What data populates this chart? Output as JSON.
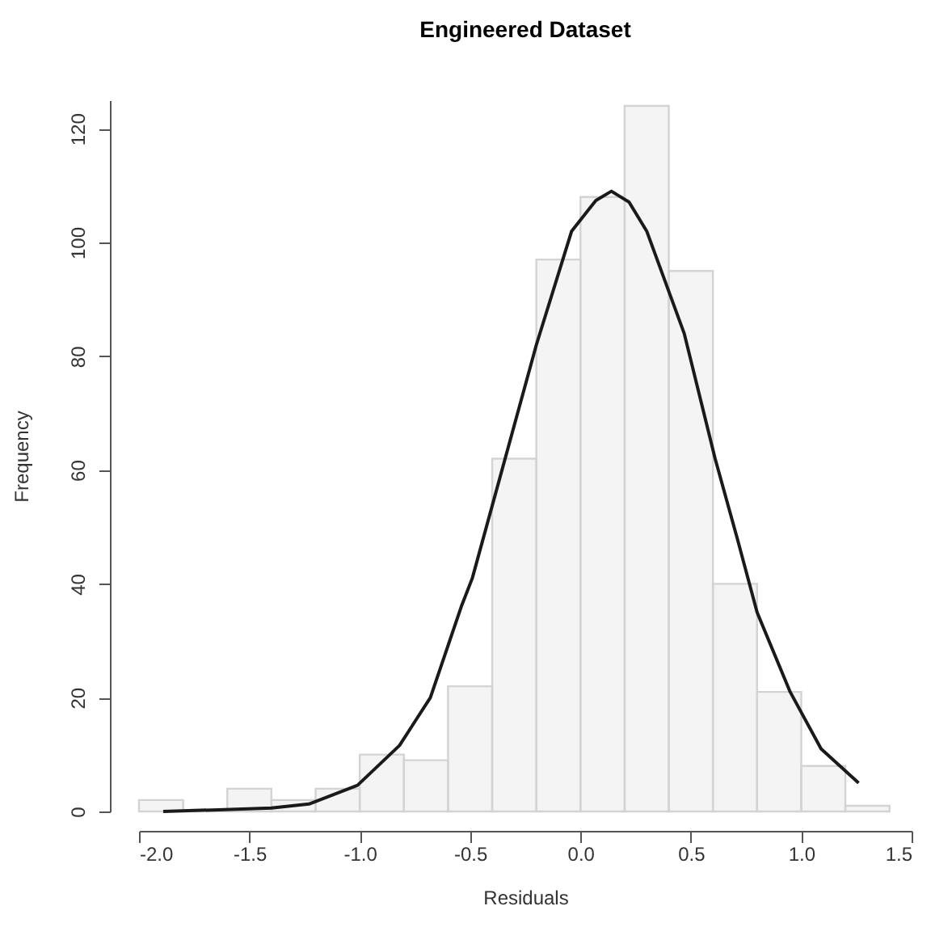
{
  "chart_data": {
    "type": "histogram",
    "title": "Engineered Dataset",
    "xlabel": "Residuals",
    "ylabel": "Frequency",
    "bins": [
      -2.0,
      -1.8,
      -1.6,
      -1.4,
      -1.2,
      -1.0,
      -0.8,
      -0.6,
      -0.4,
      -0.2,
      0.0,
      0.2,
      0.4,
      0.6,
      0.8,
      1.0,
      1.2,
      1.4
    ],
    "values": [
      2,
      0,
      4,
      2,
      4,
      10,
      9,
      22,
      62,
      97,
      108,
      124,
      95,
      40,
      21,
      8,
      1
    ],
    "color": "#d3d3d3",
    "series": [
      {
        "type": "line",
        "color": "#1a1a1a",
        "x": [
          -1.89,
          -1.64,
          -1.4,
          -1.23,
          -1.01,
          -0.82,
          -0.68,
          -0.54,
          -0.49,
          -0.2,
          -0.04,
          0.07,
          0.14,
          0.22,
          0.3,
          0.47,
          0.61,
          0.71,
          0.8,
          0.95,
          1.09,
          1.26
        ],
        "values": [
          0,
          0.3,
          0.6,
          1.3,
          4.6,
          11.6,
          20,
          36,
          41,
          82,
          102,
          107.4,
          109,
          107.1,
          102,
          84,
          62,
          48,
          35,
          21,
          11,
          5
        ]
      }
    ],
    "xlim": [
      -2.0,
      1.5
    ],
    "ylim": [
      0,
      125
    ],
    "xticks": [
      {
        "value": -2.0,
        "label": "-2.0"
      },
      {
        "value": -1.5,
        "label": "-1.5"
      },
      {
        "value": -1.0,
        "label": "-1.0"
      },
      {
        "value": -0.5,
        "label": "-0.5"
      },
      {
        "value": 0,
        "label": "0.0"
      },
      {
        "value": 0.5,
        "label": "0.5"
      },
      {
        "value": 1.0,
        "label": "1.0"
      },
      {
        "value": 1.5,
        "label": "1.5"
      }
    ],
    "yticks": [
      0,
      20,
      40,
      60,
      80,
      100,
      120
    ]
  }
}
